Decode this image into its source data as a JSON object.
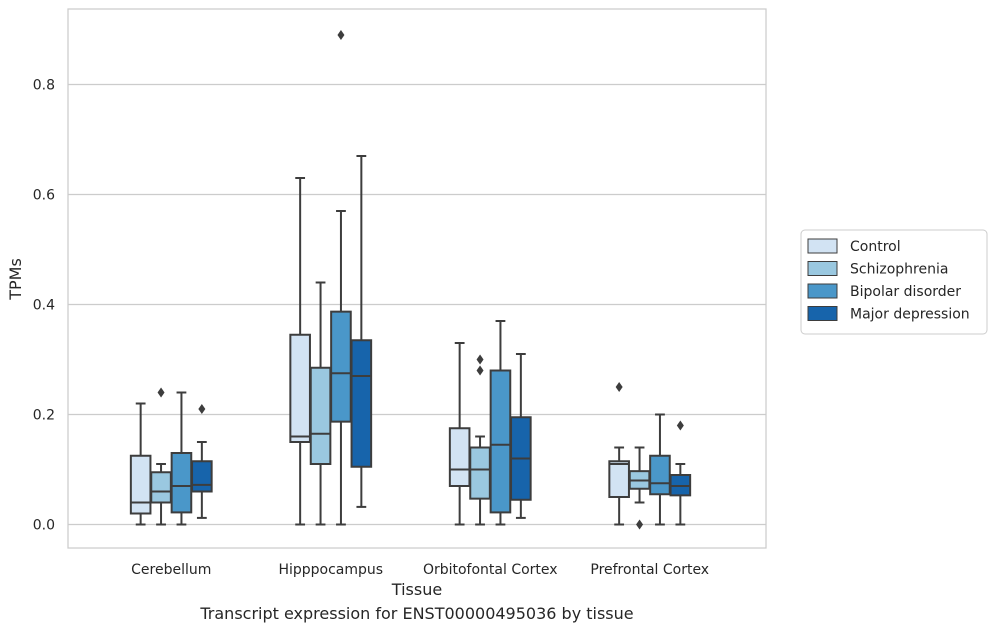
{
  "caption": "Transcript expression for ENST00000495036 by tissue",
  "chart_data": {
    "type": "boxplot",
    "title": "",
    "xlabel": "Tissue",
    "ylabel": "TPMs",
    "ylim": [
      -0.042,
      0.942
    ],
    "yticks": [
      0.0,
      0.2,
      0.4,
      0.6,
      0.8
    ],
    "ytick_labels": [
      "0.0",
      "0.2",
      "0.4",
      "0.6",
      "0.8"
    ],
    "grid": "horizontal",
    "legend_position": "right",
    "categories": [
      "Cerebellum",
      "Hipppocampus",
      "Orbitofontal Cortex",
      "Prefrontal Cortex"
    ],
    "series": [
      {
        "name": "Control",
        "color": "#d2e3f3",
        "boxes": [
          {
            "whislo": 0.0,
            "q1": 0.02,
            "med": 0.04,
            "q3": 0.125,
            "whishi": 0.22,
            "fliers": []
          },
          {
            "whislo": 0.0,
            "q1": 0.15,
            "med": 0.16,
            "q3": 0.345,
            "whishi": 0.63,
            "fliers": []
          },
          {
            "whislo": 0.0,
            "q1": 0.07,
            "med": 0.1,
            "q3": 0.175,
            "whishi": 0.33,
            "fliers": []
          },
          {
            "whislo": 0.0,
            "q1": 0.05,
            "med": 0.11,
            "q3": 0.115,
            "whishi": 0.14,
            "fliers": [
              0.25
            ]
          }
        ]
      },
      {
        "name": "Schizophrenia",
        "color": "#9ac8e0",
        "boxes": [
          {
            "whislo": 0.0,
            "q1": 0.04,
            "med": 0.06,
            "q3": 0.095,
            "whishi": 0.11,
            "fliers": [
              0.24
            ]
          },
          {
            "whislo": 0.0,
            "q1": 0.11,
            "med": 0.165,
            "q3": 0.285,
            "whishi": 0.44,
            "fliers": []
          },
          {
            "whislo": 0.0,
            "q1": 0.047,
            "med": 0.1,
            "q3": 0.14,
            "whishi": 0.16,
            "fliers": [
              0.28,
              0.3
            ]
          },
          {
            "whislo": 0.04,
            "q1": 0.065,
            "med": 0.08,
            "q3": 0.097,
            "whishi": 0.14,
            "fliers": [
              0.0
            ]
          }
        ]
      },
      {
        "name": "Bipolar disorder",
        "color": "#4a97c9",
        "boxes": [
          {
            "whislo": 0.0,
            "q1": 0.022,
            "med": 0.07,
            "q3": 0.13,
            "whishi": 0.24,
            "fliers": []
          },
          {
            "whislo": 0.0,
            "q1": 0.187,
            "med": 0.275,
            "q3": 0.387,
            "whishi": 0.57,
            "fliers": [
              0.89
            ]
          },
          {
            "whislo": 0.0,
            "q1": 0.022,
            "med": 0.145,
            "q3": 0.28,
            "whishi": 0.37,
            "fliers": []
          },
          {
            "whislo": 0.0,
            "q1": 0.055,
            "med": 0.075,
            "q3": 0.125,
            "whishi": 0.2,
            "fliers": []
          }
        ]
      },
      {
        "name": "Major depression",
        "color": "#1764ab",
        "boxes": [
          {
            "whislo": 0.012,
            "q1": 0.06,
            "med": 0.072,
            "q3": 0.115,
            "whishi": 0.15,
            "fliers": [
              0.21
            ]
          },
          {
            "whislo": 0.032,
            "q1": 0.105,
            "med": 0.27,
            "q3": 0.335,
            "whishi": 0.67,
            "fliers": []
          },
          {
            "whislo": 0.012,
            "q1": 0.045,
            "med": 0.12,
            "q3": 0.195,
            "whishi": 0.31,
            "fliers": []
          },
          {
            "whislo": 0.0,
            "q1": 0.053,
            "med": 0.07,
            "q3": 0.09,
            "whishi": 0.11,
            "fliers": [
              0.18
            ]
          }
        ]
      }
    ]
  }
}
